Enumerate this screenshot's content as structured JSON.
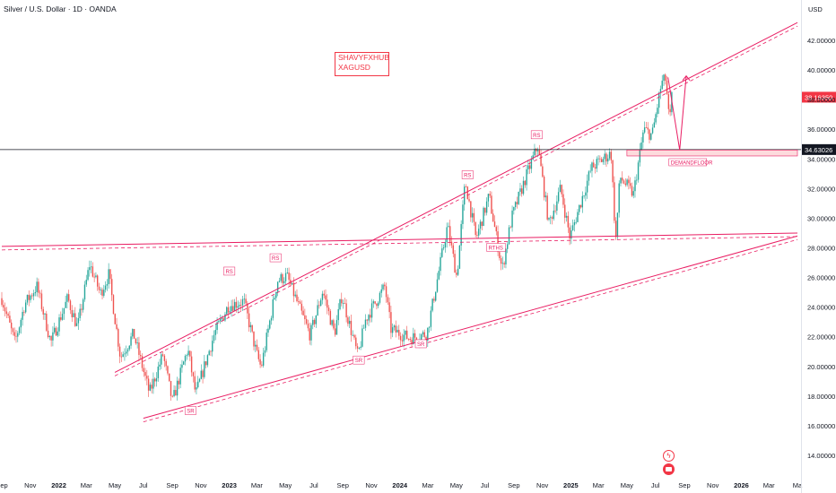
{
  "header": {
    "title": "Silver / U.S. Dollar · 1D · OANDA"
  },
  "watermark": {
    "line1": "SHAVYFXHUB",
    "line2": "XAGUSD"
  },
  "currency_label": "USD",
  "colors": {
    "up": "#26a69a",
    "down": "#ef5350",
    "trendline": "#e91e63",
    "price_tag": "#f23645",
    "level_tag": "#131722"
  },
  "chart_data": {
    "type": "candlestick",
    "symbol": "XAGUSD",
    "interval": "1D",
    "ylim": [
      13,
      43.7
    ],
    "y_ticks": [
      14,
      16,
      18,
      20,
      22,
      24,
      26,
      28,
      30,
      32,
      34,
      36,
      38,
      40,
      42
    ],
    "y_tick_labels": [
      "14.00000",
      "16.00000",
      "18.00000",
      "20.00000",
      "22.00000",
      "24.00000",
      "26.00000",
      "28.00000",
      "30.00000",
      "32.00000",
      "34.00000",
      "36.00000",
      "38.00000",
      "40.00000",
      "42.00000"
    ],
    "x_ticks": [
      {
        "label": "Sep",
        "date": "2021-09-01"
      },
      {
        "label": "Nov",
        "date": "2021-11-01"
      },
      {
        "label": "2022",
        "date": "2022-01-01",
        "bold": true
      },
      {
        "label": "Mar",
        "date": "2022-03-01"
      },
      {
        "label": "May",
        "date": "2022-05-01"
      },
      {
        "label": "Jul",
        "date": "2022-07-01"
      },
      {
        "label": "Sep",
        "date": "2022-09-01"
      },
      {
        "label": "Nov",
        "date": "2022-11-01"
      },
      {
        "label": "2023",
        "date": "2023-01-01",
        "bold": true
      },
      {
        "label": "Mar",
        "date": "2023-03-01"
      },
      {
        "label": "May",
        "date": "2023-05-01"
      },
      {
        "label": "Jul",
        "date": "2023-07-01"
      },
      {
        "label": "Sep",
        "date": "2023-09-01"
      },
      {
        "label": "Nov",
        "date": "2023-11-01"
      },
      {
        "label": "2024",
        "date": "2024-01-01",
        "bold": true
      },
      {
        "label": "Mar",
        "date": "2024-03-01"
      },
      {
        "label": "May",
        "date": "2024-05-01"
      },
      {
        "label": "Jul",
        "date": "2024-07-01"
      },
      {
        "label": "Sep",
        "date": "2024-09-01"
      },
      {
        "label": "Nov",
        "date": "2024-11-01"
      },
      {
        "label": "2025",
        "date": "2025-01-01",
        "bold": true
      },
      {
        "label": "Mar",
        "date": "2025-03-01"
      },
      {
        "label": "May",
        "date": "2025-05-01"
      },
      {
        "label": "Jul",
        "date": "2025-07-01"
      },
      {
        "label": "Sep",
        "date": "2025-09-01"
      },
      {
        "label": "Nov",
        "date": "2025-11-01"
      },
      {
        "label": "2026",
        "date": "2026-01-01",
        "bold": true
      },
      {
        "label": "Mar",
        "date": "2026-03-01"
      },
      {
        "label": "Ma",
        "date": "2026-05-01"
      }
    ],
    "price_path": [
      [
        "2021-09-01",
        24.6
      ],
      [
        "2021-09-29",
        21.6
      ],
      [
        "2021-10-20",
        24.2
      ],
      [
        "2021-11-15",
        25.4
      ],
      [
        "2021-12-15",
        21.6
      ],
      [
        "2022-01-20",
        24.6
      ],
      [
        "2022-02-10",
        22.6
      ],
      [
        "2022-03-08",
        26.9
      ],
      [
        "2022-03-31",
        24.9
      ],
      [
        "2022-04-18",
        26.2
      ],
      [
        "2022-05-13",
        20.6
      ],
      [
        "2022-06-10",
        22.2
      ],
      [
        "2022-07-14",
        18.2
      ],
      [
        "2022-08-12",
        20.8
      ],
      [
        "2022-09-01",
        17.6
      ],
      [
        "2022-10-04",
        21.2
      ],
      [
        "2022-10-21",
        18.1
      ],
      [
        "2022-11-30",
        22.2
      ],
      [
        "2022-12-30",
        24.1
      ],
      [
        "2023-02-01",
        24.4
      ],
      [
        "2023-02-28",
        20.9
      ],
      [
        "2023-03-10",
        19.9
      ],
      [
        "2023-04-14",
        25.8
      ],
      [
        "2023-05-04",
        26.1
      ],
      [
        "2023-06-23",
        22.1
      ],
      [
        "2023-07-20",
        25.1
      ],
      [
        "2023-08-14",
        22.2
      ],
      [
        "2023-08-30",
        24.8
      ],
      [
        "2023-10-03",
        20.7
      ],
      [
        "2023-10-20",
        23.2
      ],
      [
        "2023-11-30",
        25.4
      ],
      [
        "2023-12-13",
        22.5
      ],
      [
        "2024-01-22",
        21.9
      ],
      [
        "2024-02-28",
        22.2
      ],
      [
        "2024-04-12",
        29.5
      ],
      [
        "2024-05-02",
        26.0
      ],
      [
        "2024-05-20",
        32.5
      ],
      [
        "2024-06-12",
        28.6
      ],
      [
        "2024-07-10",
        31.5
      ],
      [
        "2024-08-07",
        26.5
      ],
      [
        "2024-08-27",
        30.0
      ],
      [
        "2024-09-27",
        32.8
      ],
      [
        "2024-10-22",
        34.9
      ],
      [
        "2024-11-15",
        29.6
      ],
      [
        "2024-12-10",
        32.0
      ],
      [
        "2024-12-30",
        28.7
      ],
      [
        "2025-02-14",
        33.4
      ],
      [
        "2025-03-28",
        34.4
      ],
      [
        "2025-04-07",
        28.4
      ],
      [
        "2025-04-16",
        32.8
      ],
      [
        "2025-05-15",
        31.6
      ],
      [
        "2025-06-06",
        36.0
      ],
      [
        "2025-06-24",
        35.6
      ],
      [
        "2025-07-14",
        39.1
      ],
      [
        "2025-07-23",
        39.4
      ],
      [
        "2025-07-31",
        36.3
      ],
      [
        "2025-08-05",
        38.16
      ]
    ],
    "last_price": 38.1635,
    "last_price_label": "38.16350",
    "horizontal_levels": [
      {
        "value": 34.63026,
        "label": "34.63026"
      }
    ],
    "demand_zone": {
      "from": "2025-05-01",
      "to": "2026-05-01",
      "low": 34.2,
      "high": 34.6,
      "label": "DEMANDFLOOR"
    },
    "trendlines": [
      {
        "name": "upper-channel",
        "p1": [
          "2022-05-01",
          19.6
        ],
        "p2": [
          "2026-05-01",
          43.2
        ]
      },
      {
        "name": "lower-channel",
        "p1": [
          "2022-07-01",
          16.5
        ],
        "p2": [
          "2026-05-01",
          28.8
        ]
      },
      {
        "name": "flat-resistance",
        "p1": [
          "2021-09-01",
          28.1
        ],
        "p2": [
          "2026-05-01",
          29.0
        ]
      }
    ],
    "projection": [
      [
        "2025-07-28",
        39.5
      ],
      [
        "2025-08-22",
        34.6
      ],
      [
        "2025-09-05",
        39.6
      ]
    ],
    "annotations": [
      {
        "text": "RS",
        "date": "2023-01-01",
        "value": 26.4
      },
      {
        "text": "RS",
        "date": "2023-04-10",
        "value": 27.3
      },
      {
        "text": "SR",
        "date": "2022-10-10",
        "value": 17.0
      },
      {
        "text": "SR",
        "date": "2023-10-05",
        "value": 20.4
      },
      {
        "text": "SR",
        "date": "2024-02-15",
        "value": 21.5
      },
      {
        "text": "RS",
        "date": "2024-05-25",
        "value": 32.9
      },
      {
        "text": "RS",
        "date": "2024-10-20",
        "value": 35.6
      },
      {
        "text": "RTHS",
        "date": "2024-07-25",
        "value": 28.0
      }
    ]
  }
}
